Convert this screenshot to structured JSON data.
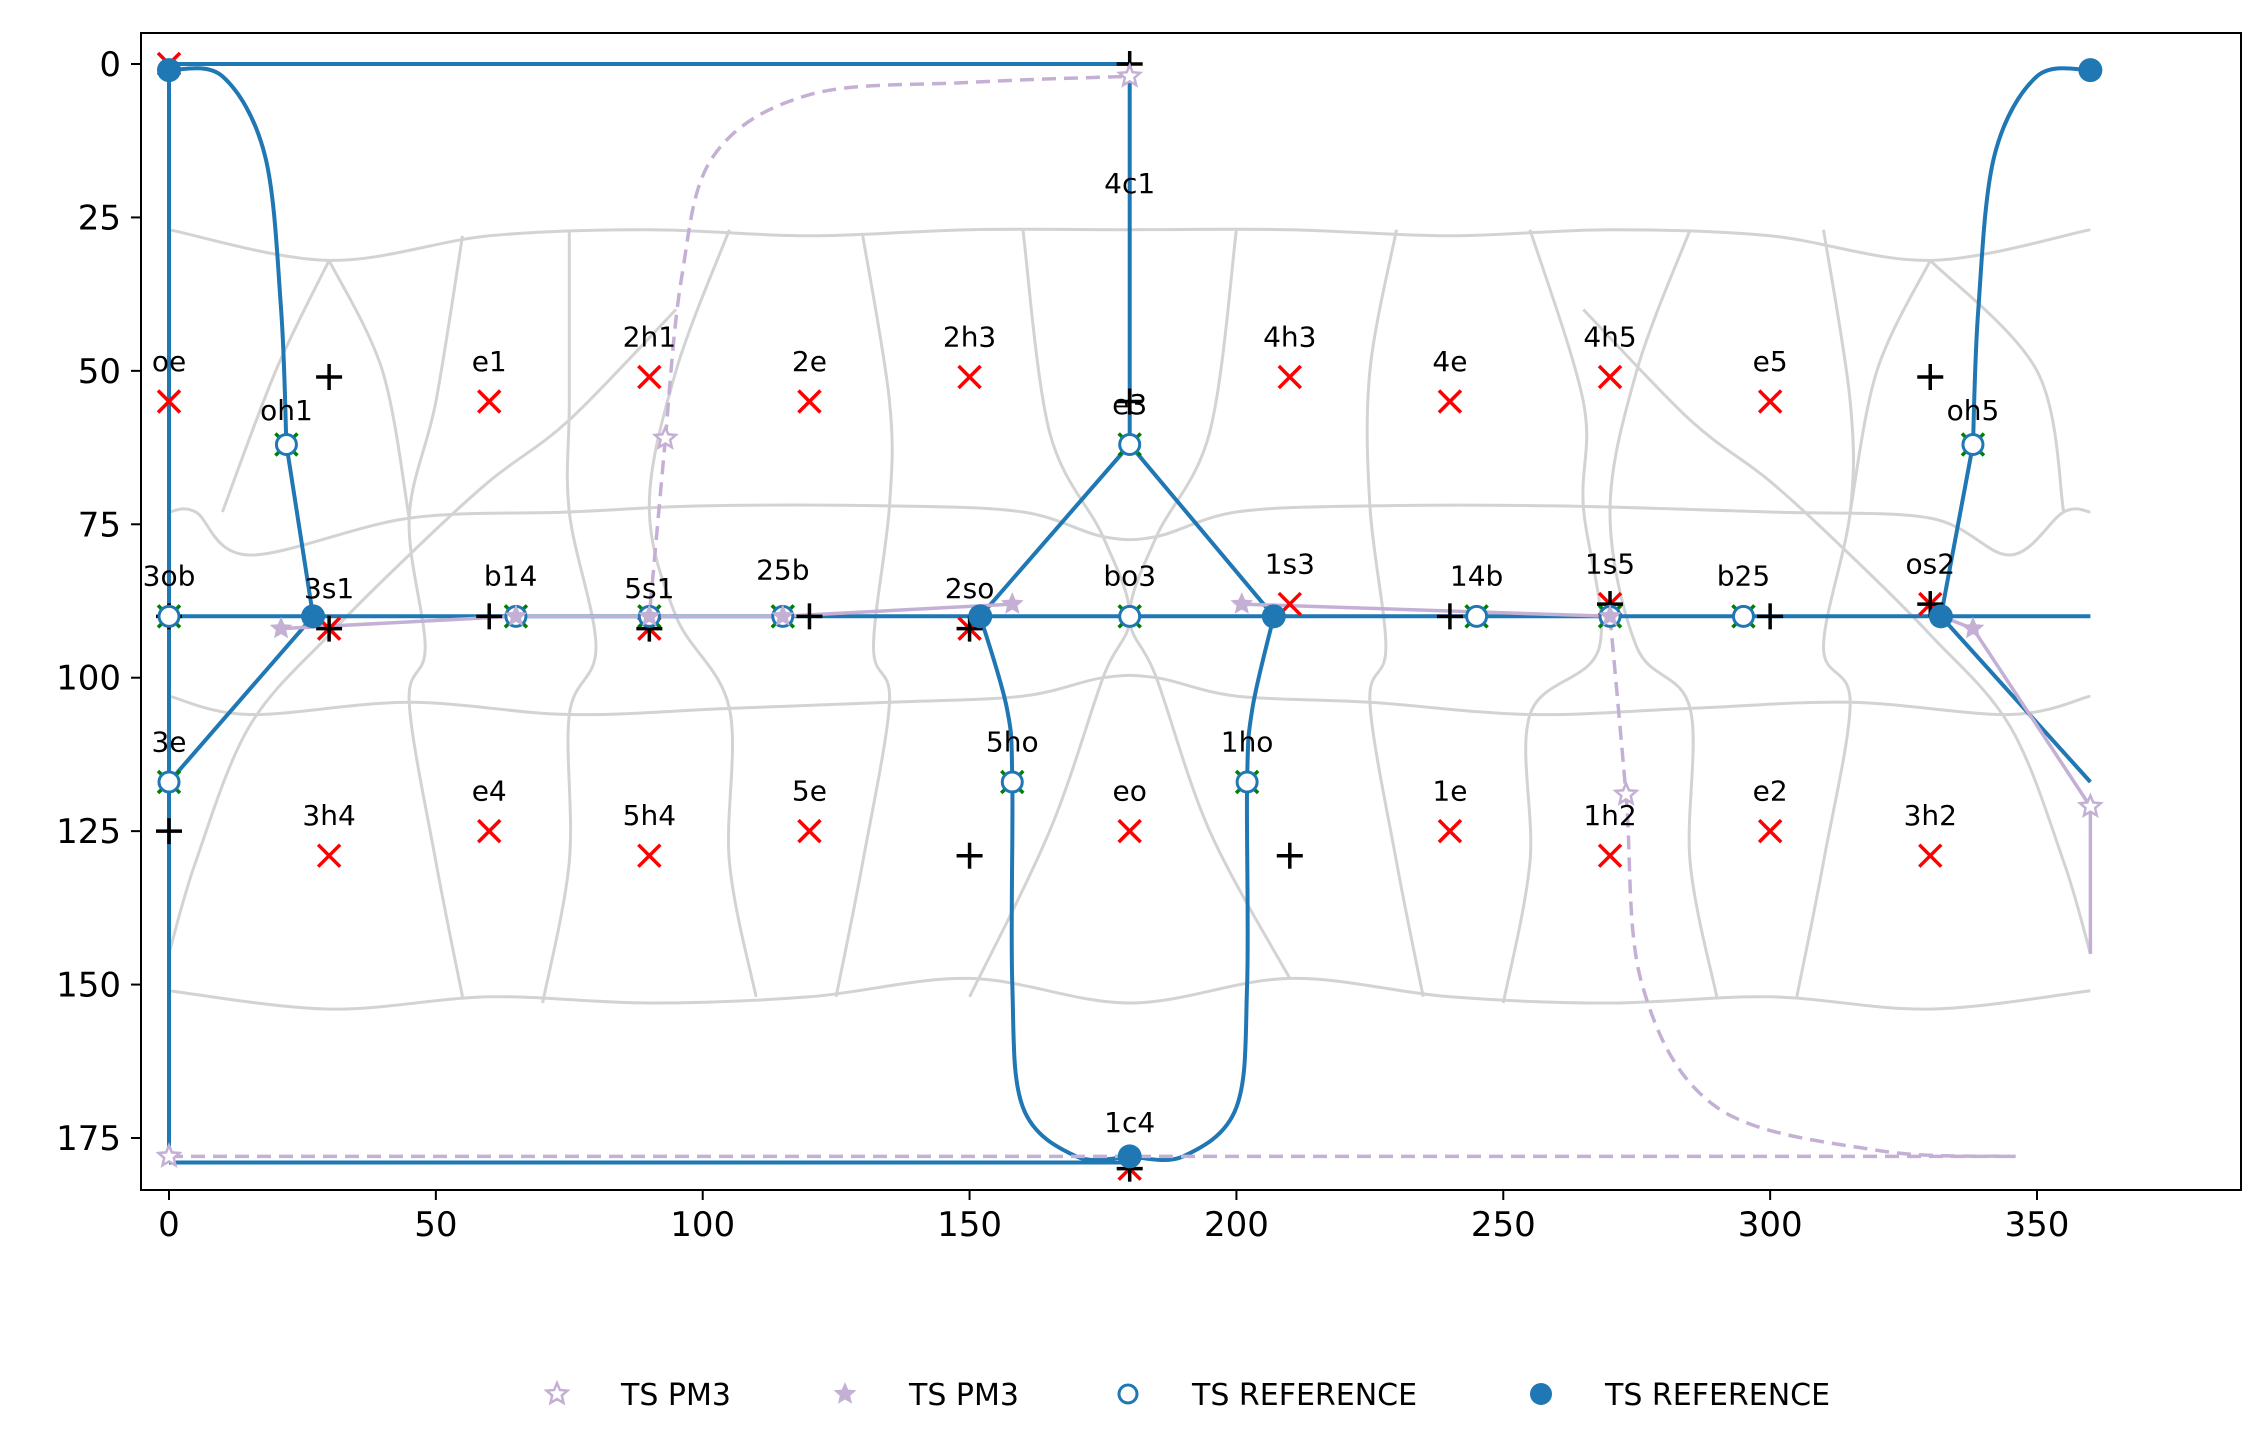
{
  "chart_data": {
    "type": "scatter",
    "title": "",
    "xlabel": "",
    "ylabel": "",
    "xlim": [
      -5,
      365
    ],
    "ylim_inverted": [
      -5,
      185
    ],
    "x_ticks": [
      0,
      50,
      100,
      150,
      200,
      250,
      300,
      350
    ],
    "y_ticks": [
      0,
      25,
      50,
      75,
      100,
      125,
      150,
      175
    ],
    "x_tick_labels": [
      "0",
      "50",
      "100",
      "150",
      "200",
      "250",
      "300",
      "350"
    ],
    "y_tick_labels": [
      "0",
      "25",
      "50",
      "75",
      "100",
      "125",
      "150",
      "175"
    ],
    "colors": {
      "reference": "#1f77b4",
      "pm3": "#c5b0d5",
      "grid": "#d3d3d3",
      "minima_red": "#ff0000",
      "ts_green": "#008000",
      "plus": "#000000"
    },
    "labels": [
      {
        "text": "oe",
        "x": 0,
        "y": 50
      },
      {
        "text": "e1",
        "x": 60,
        "y": 50
      },
      {
        "text": "2h1",
        "x": 90,
        "y": 46
      },
      {
        "text": "2e",
        "x": 120,
        "y": 50
      },
      {
        "text": "2h3",
        "x": 150,
        "y": 46
      },
      {
        "text": "4c1",
        "x": 180,
        "y": 21
      },
      {
        "text": "e3",
        "x": 180,
        "y": 57
      },
      {
        "text": "4h3",
        "x": 210,
        "y": 46
      },
      {
        "text": "4e",
        "x": 240,
        "y": 50
      },
      {
        "text": "4h5",
        "x": 270,
        "y": 46
      },
      {
        "text": "e5",
        "x": 300,
        "y": 50
      },
      {
        "text": "oh1",
        "x": 22,
        "y": 58
      },
      {
        "text": "oh5",
        "x": 338,
        "y": 58
      },
      {
        "text": "3ob",
        "x": 0,
        "y": 85
      },
      {
        "text": "3s1",
        "x": 30,
        "y": 87
      },
      {
        "text": "b14",
        "x": 64,
        "y": 85
      },
      {
        "text": "5s1",
        "x": 90,
        "y": 87
      },
      {
        "text": "25b",
        "x": 115,
        "y": 84
      },
      {
        "text": "2so",
        "x": 150,
        "y": 87
      },
      {
        "text": "bo3",
        "x": 180,
        "y": 85
      },
      {
        "text": "1s3",
        "x": 210,
        "y": 83
      },
      {
        "text": "14b",
        "x": 245,
        "y": 85
      },
      {
        "text": "1s5",
        "x": 270,
        "y": 83
      },
      {
        "text": "b25",
        "x": 295,
        "y": 85
      },
      {
        "text": "os2",
        "x": 330,
        "y": 83
      },
      {
        "text": "3e",
        "x": 0,
        "y": 112
      },
      {
        "text": "5ho",
        "x": 158,
        "y": 112
      },
      {
        "text": "1ho",
        "x": 202,
        "y": 112
      },
      {
        "text": "3h4",
        "x": 30,
        "y": 124
      },
      {
        "text": "e4",
        "x": 60,
        "y": 120
      },
      {
        "text": "5h4",
        "x": 90,
        "y": 124
      },
      {
        "text": "5e",
        "x": 120,
        "y": 120
      },
      {
        "text": "eo",
        "x": 180,
        "y": 120
      },
      {
        "text": "1e",
        "x": 240,
        "y": 120
      },
      {
        "text": "1h2",
        "x": 270,
        "y": 124
      },
      {
        "text": "e2",
        "x": 300,
        "y": 120
      },
      {
        "text": "3h2",
        "x": 330,
        "y": 124
      },
      {
        "text": "1c4",
        "x": 180,
        "y": 174
      }
    ],
    "red_x_markers": [
      [
        0,
        0
      ],
      [
        0,
        55
      ],
      [
        60,
        55
      ],
      [
        90,
        51
      ],
      [
        120,
        55
      ],
      [
        150,
        51
      ],
      [
        210,
        51
      ],
      [
        240,
        55
      ],
      [
        270,
        51
      ],
      [
        300,
        55
      ],
      [
        30,
        92
      ],
      [
        90,
        92
      ],
      [
        150,
        92
      ],
      [
        210,
        88
      ],
      [
        270,
        88
      ],
      [
        330,
        88
      ],
      [
        30,
        129
      ],
      [
        60,
        125
      ],
      [
        90,
        129
      ],
      [
        120,
        125
      ],
      [
        180,
        125
      ],
      [
        240,
        125
      ],
      [
        270,
        129
      ],
      [
        300,
        125
      ],
      [
        330,
        129
      ],
      [
        180,
        180
      ]
    ],
    "green_x_markers": [
      [
        22,
        62
      ],
      [
        338,
        62
      ],
      [
        0,
        90
      ],
      [
        65,
        90
      ],
      [
        90,
        90
      ],
      [
        115,
        90
      ],
      [
        180,
        90
      ],
      [
        245,
        90
      ],
      [
        270,
        90
      ],
      [
        295,
        90
      ],
      [
        0,
        117
      ],
      [
        158,
        117
      ],
      [
        202,
        117
      ],
      [
        180,
        62
      ]
    ],
    "plus_markers": [
      [
        180,
        0
      ],
      [
        30,
        51
      ],
      [
        330,
        51
      ],
      [
        180,
        55
      ],
      [
        0,
        90
      ],
      [
        60,
        90
      ],
      [
        90,
        92
      ],
      [
        120,
        90
      ],
      [
        150,
        92
      ],
      [
        240,
        90
      ],
      [
        300,
        90
      ],
      [
        270,
        88
      ],
      [
        330,
        88
      ],
      [
        30,
        92
      ],
      [
        0,
        125
      ],
      [
        150,
        129
      ],
      [
        210,
        129
      ],
      [
        180,
        180
      ]
    ],
    "series": [
      {
        "name": "TS REFERENCE",
        "style": "open-circle",
        "points": [
          [
            22,
            62
          ],
          [
            338,
            62
          ],
          [
            0,
            90
          ],
          [
            65,
            90
          ],
          [
            90,
            90
          ],
          [
            115,
            90
          ],
          [
            180,
            90
          ],
          [
            245,
            90
          ],
          [
            270,
            90
          ],
          [
            295,
            90
          ],
          [
            0,
            117
          ],
          [
            158,
            117
          ],
          [
            202,
            117
          ],
          [
            180,
            62
          ]
        ]
      },
      {
        "name": "TS REFERENCE",
        "style": "filled-circle",
        "points": [
          [
            0,
            1
          ],
          [
            360,
            1
          ],
          [
            27,
            90
          ],
          [
            152,
            90
          ],
          [
            207,
            90
          ],
          [
            332,
            90
          ],
          [
            180,
            178
          ]
        ]
      },
      {
        "name": "TS PM3",
        "style": "open-star",
        "points": [
          [
            93,
            61
          ],
          [
            180,
            2
          ],
          [
            273,
            119
          ],
          [
            360,
            121
          ],
          [
            0,
            178
          ]
        ]
      },
      {
        "name": "TS PM3",
        "style": "filled-star",
        "points": [
          [
            21,
            92
          ],
          [
            65,
            90
          ],
          [
            90,
            90
          ],
          [
            115,
            90
          ],
          [
            158,
            88
          ],
          [
            201,
            88
          ],
          [
            270,
            90
          ],
          [
            338,
            92
          ]
        ]
      }
    ],
    "legend": {
      "placement": "bottom-center",
      "entries": [
        "TS PM3",
        "TS PM3",
        "TS REFERENCE",
        "TS REFERENCE"
      ]
    }
  }
}
